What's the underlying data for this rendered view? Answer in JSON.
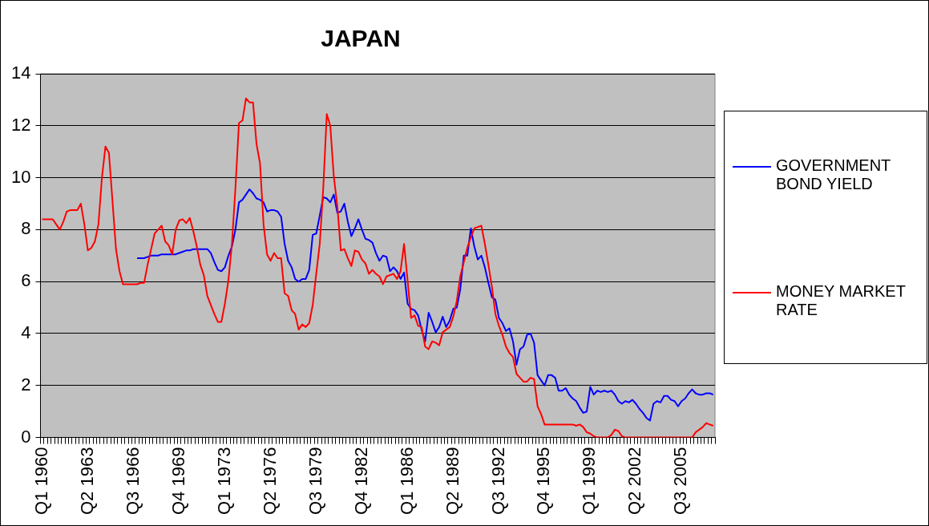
{
  "chart_data": {
    "type": "line",
    "title": "JAPAN",
    "categories": [
      "Q1 1960",
      null,
      null,
      null,
      null,
      null,
      null,
      null,
      null,
      null,
      null,
      null,
      null,
      "Q2 1963",
      null,
      null,
      null,
      null,
      null,
      null,
      null,
      null,
      null,
      null,
      null,
      null,
      "Q3 1966",
      null,
      null,
      null,
      null,
      null,
      null,
      null,
      null,
      null,
      null,
      null,
      null,
      "Q4 1969",
      null,
      null,
      null,
      null,
      null,
      null,
      null,
      null,
      null,
      null,
      null,
      null,
      "Q1 1973",
      null,
      null,
      null,
      null,
      null,
      null,
      null,
      null,
      null,
      null,
      null,
      null,
      "Q2 1976",
      null,
      null,
      null,
      null,
      null,
      null,
      null,
      null,
      null,
      null,
      null,
      null,
      "Q3 1979",
      null,
      null,
      null,
      null,
      null,
      null,
      null,
      null,
      null,
      null,
      null,
      null,
      "Q4 1982",
      null,
      null,
      null,
      null,
      null,
      null,
      null,
      null,
      null,
      null,
      null,
      null,
      "Q1 1986",
      null,
      null,
      null,
      null,
      null,
      null,
      null,
      null,
      null,
      null,
      null,
      null,
      "Q2 1989",
      null,
      null,
      null,
      null,
      null,
      null,
      null,
      null,
      null,
      null,
      null,
      null,
      "Q3 1992",
      null,
      null,
      null,
      null,
      null,
      null,
      null,
      null,
      null,
      null,
      null,
      null,
      "Q4 1995",
      null,
      null,
      null,
      null,
      null,
      null,
      null,
      null,
      null,
      null,
      null,
      null,
      "Q1 1999",
      null,
      null,
      null,
      null,
      null,
      null,
      null,
      null,
      null,
      null,
      null,
      null,
      "Q2 2002",
      null,
      null,
      null,
      null,
      null,
      null,
      null,
      null,
      null,
      null,
      null,
      null,
      "Q3 2005",
      null,
      null,
      null,
      null,
      null,
      null,
      null,
      null,
      null
    ],
    "series": [
      {
        "name": "GOVERNMENT BOND YIELD",
        "color": "#0000ff",
        "values": [
          null,
          null,
          null,
          null,
          null,
          null,
          null,
          null,
          null,
          null,
          null,
          null,
          null,
          null,
          null,
          null,
          null,
          null,
          null,
          null,
          null,
          null,
          null,
          null,
          null,
          null,
          null,
          6.9,
          6.9,
          6.9,
          6.95,
          7.0,
          7.0,
          7.0,
          7.05,
          7.05,
          7.05,
          7.05,
          7.05,
          7.1,
          7.15,
          7.2,
          7.2,
          7.25,
          7.25,
          7.25,
          7.25,
          7.25,
          7.1,
          6.75,
          6.45,
          6.4,
          6.55,
          7.0,
          7.35,
          8.0,
          9.05,
          9.15,
          9.35,
          9.55,
          9.4,
          9.2,
          9.15,
          9.05,
          8.7,
          8.75,
          8.75,
          8.7,
          8.5,
          7.45,
          6.8,
          6.55,
          6.1,
          6.0,
          6.1,
          6.1,
          6.45,
          7.8,
          7.85,
          8.55,
          9.25,
          9.2,
          9.05,
          9.35,
          8.65,
          8.7,
          9.0,
          8.3,
          7.75,
          8.05,
          8.4,
          8.0,
          7.65,
          7.6,
          7.5,
          7.1,
          6.8,
          7.0,
          6.95,
          6.4,
          6.55,
          6.4,
          6.1,
          6.35,
          5.15,
          4.95,
          4.9,
          4.7,
          4.15,
          3.7,
          4.8,
          4.45,
          4.05,
          4.25,
          4.65,
          4.25,
          4.5,
          4.95,
          5.0,
          5.7,
          7.0,
          7.0,
          8.05,
          7.35,
          6.85,
          7.0,
          6.55,
          5.95,
          5.4,
          5.3,
          4.6,
          4.4,
          4.1,
          4.2,
          3.7,
          2.8,
          3.4,
          3.5,
          3.95,
          4.0,
          3.65,
          2.4,
          2.2,
          2.0,
          2.4,
          2.4,
          2.3,
          1.8,
          1.8,
          1.9,
          1.65,
          1.5,
          1.4,
          1.15,
          0.95,
          1.0,
          1.95,
          1.65,
          1.8,
          1.75,
          1.8,
          1.75,
          1.8,
          1.65,
          1.4,
          1.3,
          1.4,
          1.35,
          1.45,
          1.3,
          1.1,
          0.95,
          0.75,
          0.65,
          1.3,
          1.4,
          1.35,
          1.6,
          1.6,
          1.45,
          1.4,
          1.2,
          1.4,
          1.5,
          1.7,
          1.85,
          1.7,
          1.65,
          1.65,
          1.7,
          1.7,
          1.65
        ]
      },
      {
        "name": "MONEY MARKET RATE",
        "color": "#ff0000",
        "values": [
          8.4,
          8.4,
          8.4,
          8.4,
          8.2,
          8.0,
          8.3,
          8.7,
          8.75,
          8.75,
          8.75,
          9.0,
          8.2,
          7.2,
          7.3,
          7.55,
          8.2,
          10.0,
          11.2,
          10.95,
          9.1,
          7.25,
          6.4,
          5.9,
          5.9,
          5.9,
          5.9,
          5.9,
          5.95,
          5.95,
          6.65,
          7.25,
          7.85,
          8.0,
          8.15,
          7.55,
          7.4,
          7.05,
          8.0,
          8.35,
          8.4,
          8.25,
          8.45,
          7.95,
          7.35,
          6.65,
          6.25,
          5.45,
          5.1,
          4.75,
          4.45,
          4.45,
          5.15,
          6.05,
          7.45,
          9.6,
          12.1,
          12.2,
          13.05,
          12.9,
          12.9,
          11.3,
          10.55,
          8.2,
          7.05,
          6.8,
          7.1,
          6.9,
          6.9,
          5.55,
          5.45,
          4.9,
          4.75,
          4.15,
          4.35,
          4.25,
          4.4,
          5.1,
          6.3,
          7.45,
          9.6,
          12.45,
          12.0,
          10.05,
          8.9,
          7.2,
          7.25,
          6.9,
          6.6,
          7.2,
          7.15,
          6.85,
          6.7,
          6.3,
          6.45,
          6.3,
          6.2,
          5.9,
          6.2,
          6.25,
          6.3,
          6.1,
          6.4,
          7.45,
          6.05,
          4.6,
          4.7,
          4.3,
          4.25,
          3.5,
          3.4,
          3.7,
          3.65,
          3.55,
          4.05,
          4.15,
          4.25,
          4.65,
          5.25,
          6.2,
          6.75,
          7.3,
          7.7,
          8.05,
          8.1,
          8.15,
          7.45,
          6.65,
          5.8,
          4.75,
          4.3,
          3.95,
          3.5,
          3.25,
          3.1,
          2.45,
          2.3,
          2.15,
          2.15,
          2.3,
          2.25,
          1.2,
          0.9,
          0.5,
          0.5,
          0.5,
          0.5,
          0.5,
          0.5,
          0.5,
          0.5,
          0.5,
          0.45,
          0.5,
          0.4,
          0.2,
          0.15,
          0.05,
          0,
          0,
          0,
          0,
          0.1,
          0.3,
          0.25,
          0.05,
          0,
          0,
          0,
          0,
          0,
          0,
          0,
          0,
          0,
          0,
          0,
          0,
          0,
          0,
          0,
          0,
          0,
          0,
          0,
          0,
          0.2,
          0.3,
          0.4,
          0.55,
          0.5,
          0.45
        ]
      }
    ],
    "ylim": [
      0,
      14
    ],
    "yticks": [
      0,
      2,
      4,
      6,
      8,
      10,
      12,
      14
    ],
    "grid": "y",
    "legend": "right",
    "marker": "none",
    "line_style": "solid"
  }
}
